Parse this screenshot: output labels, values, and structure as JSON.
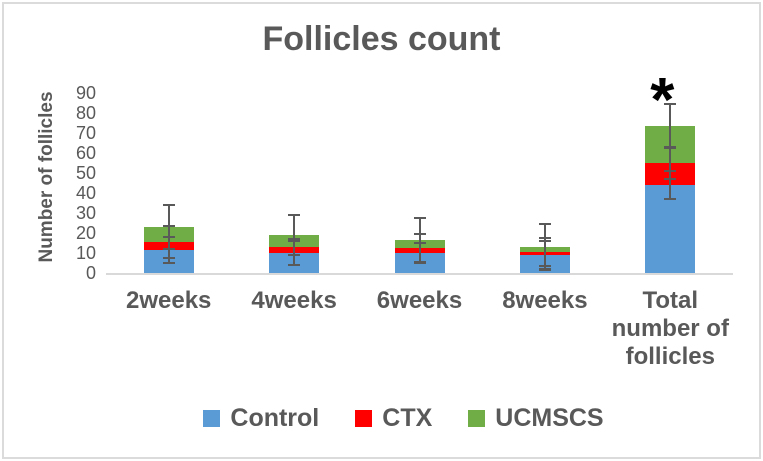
{
  "chart_data": {
    "type": "bar",
    "stacked": true,
    "title": "Follicles count",
    "xlabel": "",
    "ylabel": "Number of follicles",
    "ylim": [
      0,
      90
    ],
    "ytick_step": 10,
    "grid": false,
    "legend_position": "bottom",
    "categories": [
      "2weeks",
      "4weeks",
      "6weeks",
      "8weeks",
      "Total number of follicles"
    ],
    "series": [
      {
        "name": "Control",
        "color": "#5B9BD5",
        "values": [
          11.5,
          10,
          10,
          9,
          44
        ],
        "error_plus_minus": [
          6.5,
          6,
          5,
          7,
          7
        ]
      },
      {
        "name": "CTX",
        "color": "#FF0000",
        "values": [
          4,
          3,
          2.5,
          1.5,
          11
        ],
        "error_plus_minus": [
          8,
          4,
          7,
          7,
          8
        ]
      },
      {
        "name": "UCMSCS",
        "color": "#70AD47",
        "values": [
          7.5,
          6,
          4,
          2.5,
          18.5
        ],
        "error_plus_minus": [
          11,
          10,
          11,
          11.5,
          11
        ]
      }
    ],
    "stack_totals": [
      23,
      19,
      16.5,
      13,
      73.5
    ],
    "annotation": {
      "text": "*",
      "category_index": 4,
      "meaning": "significance marker above Total number of follicles bar"
    },
    "error_bar_color": "#595959",
    "axis_line_color": "#D9D9D9",
    "text_color": "#595959"
  }
}
